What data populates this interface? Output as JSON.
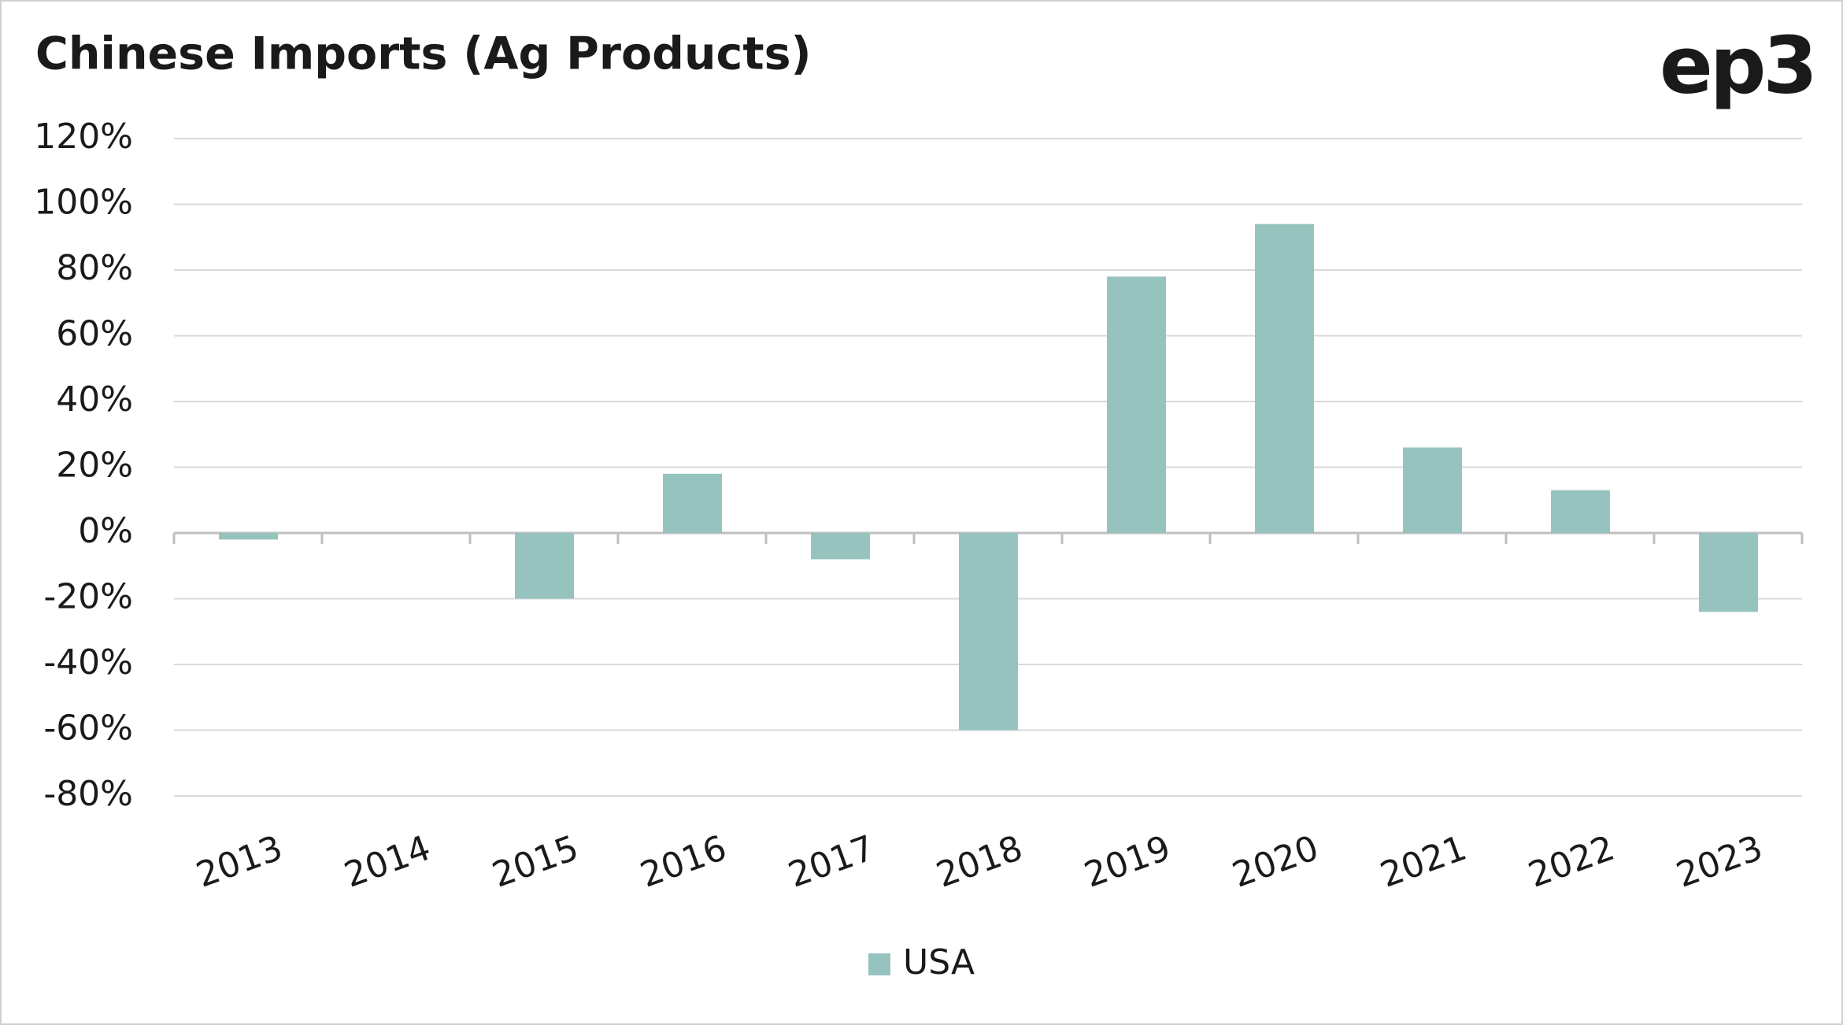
{
  "chart_data": {
    "type": "bar",
    "title": "Chinese Imports (Ag Products)",
    "logo": "ep3",
    "categories": [
      "2013",
      "2014",
      "2015",
      "2016",
      "2017",
      "2018",
      "2019",
      "2020",
      "2021",
      "2022",
      "2023"
    ],
    "series": [
      {
        "name": "USA",
        "color": "#97c3bf",
        "values": [
          -2,
          0,
          -20,
          18,
          -8,
          -60,
          78,
          94,
          26,
          13,
          -24
        ]
      }
    ],
    "ylim": [
      -80,
      120
    ],
    "yticks": [
      {
        "value": -80,
        "label": "-80%"
      },
      {
        "value": -60,
        "label": "-60%"
      },
      {
        "value": -40,
        "label": "-40%"
      },
      {
        "value": -20,
        "label": "-20%"
      },
      {
        "value": 0,
        "label": "0%"
      },
      {
        "value": 20,
        "label": "20%"
      },
      {
        "value": 40,
        "label": "40%"
      },
      {
        "value": 60,
        "label": "60%"
      },
      {
        "value": 80,
        "label": "80%"
      },
      {
        "value": 100,
        "label": "100%"
      },
      {
        "value": 120,
        "label": "120%"
      }
    ],
    "grid": true,
    "legend": "bottom"
  }
}
